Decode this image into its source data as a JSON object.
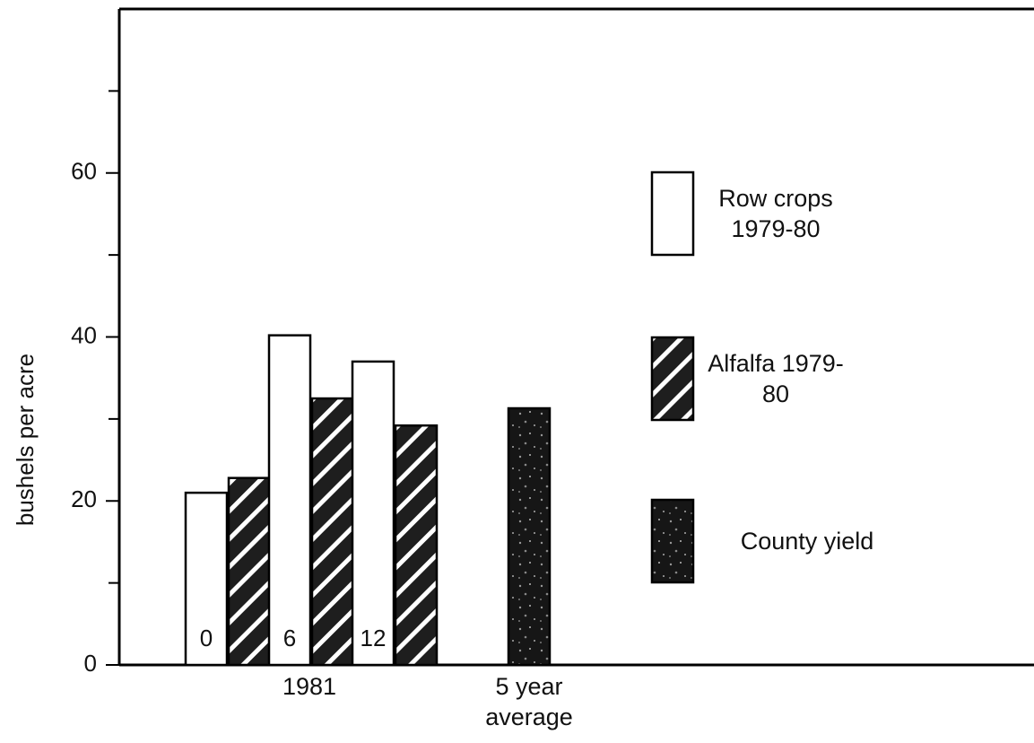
{
  "chart_data": {
    "type": "bar",
    "y_label": "bushels per acre",
    "categories": [
      "0",
      "6",
      "12",
      null
    ],
    "x_group_labels": [
      "1981",
      "5 year average"
    ],
    "series": [
      {
        "name": "Row crops 1979-80",
        "color": "#ffffff",
        "values": [
          21,
          40.2,
          37,
          null
        ]
      },
      {
        "name": "Alfalfa 1979-80",
        "color": "#1e1e1e",
        "values": [
          22.8,
          32.5,
          29.2,
          null
        ]
      },
      {
        "name": "County yield",
        "color": "#161616",
        "values": [
          null,
          null,
          null,
          31.3
        ]
      }
    ],
    "ylim": [
      0,
      80
    ],
    "yticks": [
      0,
      20,
      40,
      60
    ],
    "minor_yticks": [
      10,
      30,
      50,
      70
    ]
  }
}
